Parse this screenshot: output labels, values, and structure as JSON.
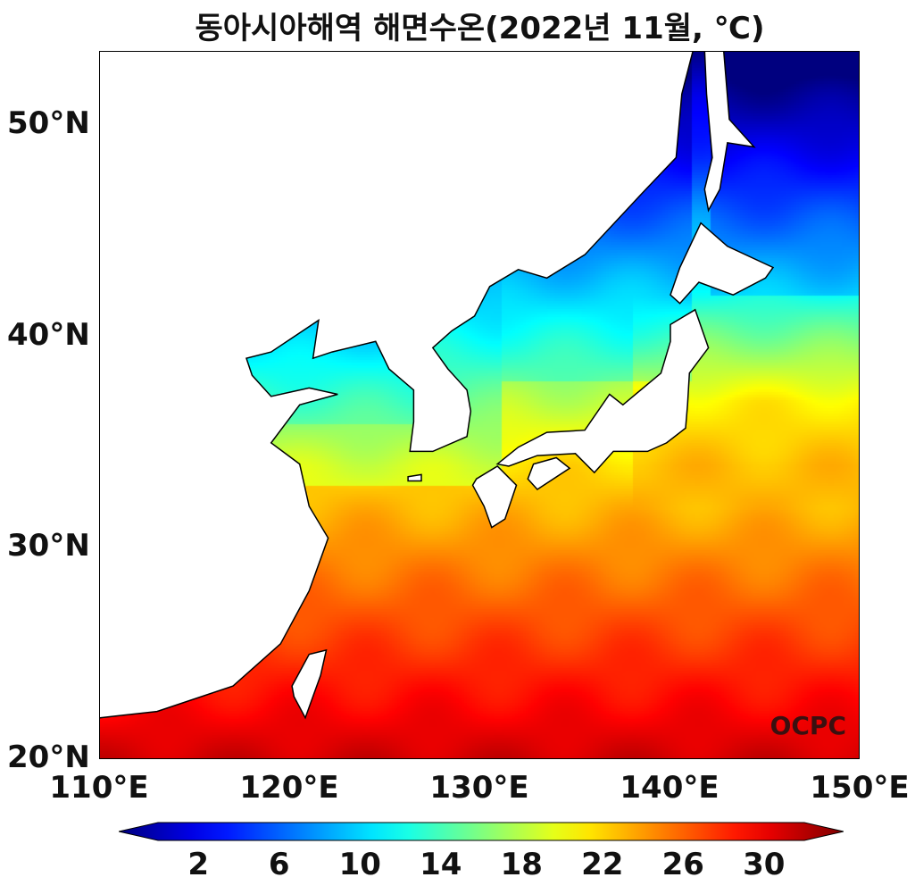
{
  "title": "동아시아해역 해면수온(2022년 11월, ℃)",
  "watermark": "OCPC",
  "chart_data": {
    "type": "heatmap",
    "title": "동아시아해역 해면수온(2022년 11월, ℃)",
    "variable": "sea surface temperature",
    "lon_range": [
      110,
      150
    ],
    "lat_range": [
      20,
      53.5
    ],
    "x_ticks": [
      "110°E",
      "120°E",
      "130°E",
      "140°E",
      "150°E"
    ],
    "x_tick_values": [
      110,
      120,
      130,
      140,
      150
    ],
    "y_ticks": [
      "20°N",
      "30°N",
      "40°N",
      "50°N"
    ],
    "y_tick_values": [
      20,
      30,
      40,
      50
    ],
    "colorbar": {
      "colormap": "jet",
      "range": [
        0,
        32
      ],
      "extend": "both",
      "ticks": [
        "2",
        "6",
        "10",
        "14",
        "18",
        "22",
        "26",
        "30"
      ],
      "tick_values": [
        2,
        6,
        10,
        14,
        18,
        22,
        26,
        30
      ],
      "placement": "bottom"
    },
    "land_color": "#ffffff",
    "coastline_color": "#000000"
  }
}
